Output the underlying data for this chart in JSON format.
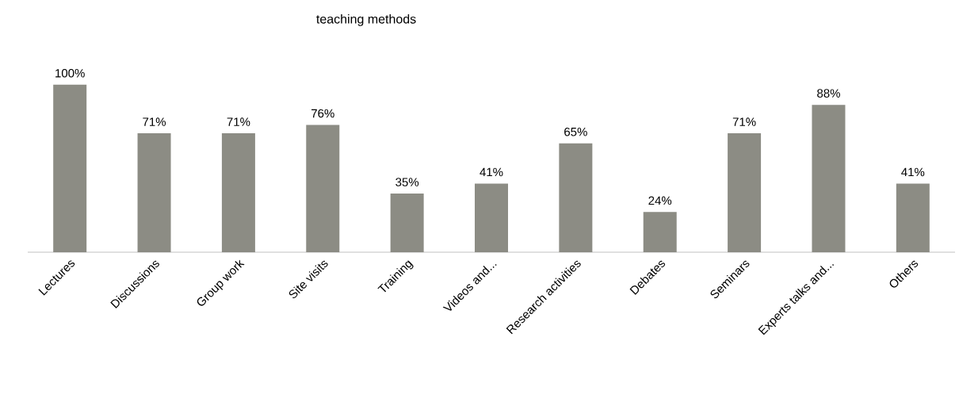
{
  "chart_data": {
    "type": "bar",
    "title": "teaching methods",
    "categories": [
      "Lectures",
      "Discussions",
      "Group work",
      "Site visits",
      "Training",
      "Videos and...",
      "Research activities",
      "Debates",
      "Seminars",
      "Experts talks and...",
      "Others"
    ],
    "values": [
      100,
      71,
      71,
      76,
      35,
      41,
      65,
      24,
      71,
      88,
      41
    ],
    "value_labels": [
      "100%",
      "71%",
      "71%",
      "76%",
      "35%",
      "41%",
      "65%",
      "24%",
      "71%",
      "88%",
      "41%"
    ],
    "color": "#8c8c84"
  }
}
